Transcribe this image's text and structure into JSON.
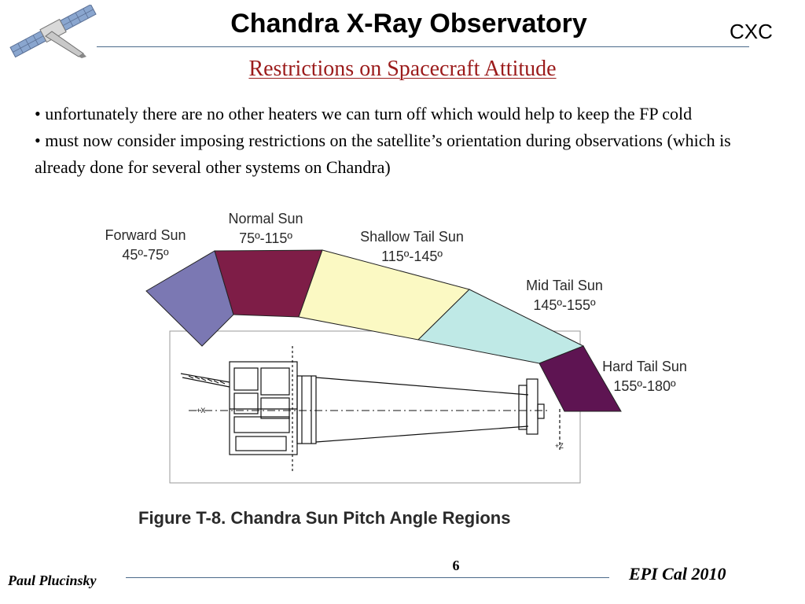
{
  "header": {
    "title": "Chandra X-Ray Observatory",
    "org": "CXC",
    "logo_icon": "chandra-satellite-icon"
  },
  "slide": {
    "subtitle": "Restrictions on Spacecraft Attitude",
    "bullets": [
      "unfortunately there are no other heaters we can turn off which would help to keep the FP cold",
      "must now consider imposing restrictions on the satellite’s orientation during observations (which is already done for several other systems on Chandra)"
    ],
    "bullet_marker": "•"
  },
  "figure": {
    "caption": "Figure T-8.  Chandra Sun Pitch Angle Regions",
    "regions": [
      {
        "name": "Forward Sun",
        "range": "45º-75º",
        "color": "#7b78b3"
      },
      {
        "name": "Normal Sun",
        "range": "75º-115º",
        "color": "#7e1d47"
      },
      {
        "name": "Shallow Tail Sun",
        "range": "115º-145º",
        "color": "#fbf9c3"
      },
      {
        "name": "Mid Tail Sun",
        "range": "145º-155º",
        "color": "#bfe9e6"
      },
      {
        "name": "Hard Tail Sun",
        "range": "155º-180º",
        "color": "#5e1452"
      }
    ]
  },
  "footer": {
    "author": "Paul Plucinsky",
    "page": "6",
    "event": "EPI Cal 2010"
  },
  "colors": {
    "subtitle": "#9b1b1b",
    "rule": "#4a6a8a"
  }
}
